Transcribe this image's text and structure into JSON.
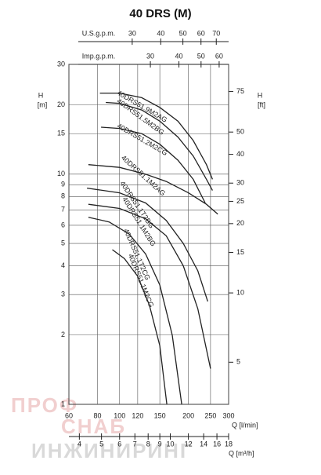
{
  "chart_data": {
    "type": "line",
    "title": "40 DRS (M)",
    "watermark": [
      "ПРОФ",
      "СНАБ",
      "ИНЖИНИРИНГ"
    ],
    "log_x": true,
    "log_y": true,
    "grid": true,
    "xlabel": "Q [l/min]",
    "xlim": [
      60,
      300
    ],
    "xticks": [
      60,
      80,
      100,
      120,
      150,
      200,
      250,
      300
    ],
    "ylabel": "H",
    "yunit": "[m]",
    "ylim": [
      1,
      30
    ],
    "yticks": [
      1,
      2,
      3,
      4,
      5,
      6,
      7,
      8,
      9,
      10,
      15,
      20,
      30
    ],
    "y2label": "H",
    "y2unit": "[ft]",
    "y2lim": [
      3.28,
      98.4
    ],
    "y2ticks": [
      5,
      10,
      15,
      20,
      25,
      30,
      40,
      50,
      75
    ],
    "us_label": "U.S.g.p.m.",
    "us_lim": [
      15.85,
      79.26
    ],
    "us_ticks": [
      30,
      40,
      50,
      60,
      70
    ],
    "imp_label": "Imp.g.p.m.",
    "imp_lim": [
      13.2,
      66.0
    ],
    "imp_ticks": [
      30,
      40,
      50,
      60
    ],
    "x2label": "Q [m³/h]",
    "x2lim": [
      3.6,
      18
    ],
    "x2ticks": [
      4,
      5,
      6,
      7,
      8,
      9,
      10,
      12,
      14,
      16,
      18
    ],
    "color": "#222",
    "series": [
      {
        "name": "40DRS51.9M2AG",
        "x": [
          82,
          100,
          125,
          150,
          180,
          210,
          240,
          255
        ],
        "values": [
          22.5,
          22.5,
          21.5,
          19.5,
          17,
          14,
          11,
          9.5
        ]
      },
      {
        "name": "40DRS51.5M2BG",
        "x": [
          87,
          100,
          125,
          150,
          180,
          210,
          240,
          255
        ],
        "values": [
          20.5,
          20.3,
          19,
          17,
          14.5,
          12,
          9.5,
          8.5
        ]
      },
      {
        "name": "40DRS51.2M2CG",
        "x": [
          83,
          100,
          125,
          150,
          180,
          210,
          237
        ],
        "values": [
          16,
          15.8,
          15,
          13.5,
          11.5,
          9.5,
          7.5
        ]
      },
      {
        "name": "40DRS51.1M2AG",
        "x": [
          73,
          100,
          130,
          160,
          200,
          240,
          269
        ],
        "values": [
          11,
          10.7,
          10,
          9.3,
          8.3,
          7.4,
          6.7
        ]
      },
      {
        "name": "40DRS51.1T2BG",
        "x": [
          72,
          100,
          130,
          160,
          190,
          220,
          243
        ],
        "values": [
          8.7,
          8.3,
          7.5,
          6.3,
          5,
          3.8,
          2.8
        ]
      },
      {
        "name": "40DRS51.1M2BG",
        "x": [
          73,
          100,
          130,
          160,
          190,
          220,
          250
        ],
        "values": [
          7.4,
          7.1,
          6.4,
          5.4,
          4,
          2.6,
          1.43
        ]
      },
      {
        "name": "40DRS51.1T2CG",
        "x": [
          73,
          90,
          110,
          130,
          150,
          170,
          187
        ],
        "values": [
          6.5,
          6.2,
          5.5,
          4.5,
          3.3,
          2,
          1
        ]
      },
      {
        "name": "40DRS51.1M2CG",
        "x": [
          93,
          105,
          120,
          135,
          150,
          161
        ],
        "values": [
          4.7,
          4.3,
          3.6,
          2.7,
          1.8,
          1
        ]
      }
    ]
  }
}
